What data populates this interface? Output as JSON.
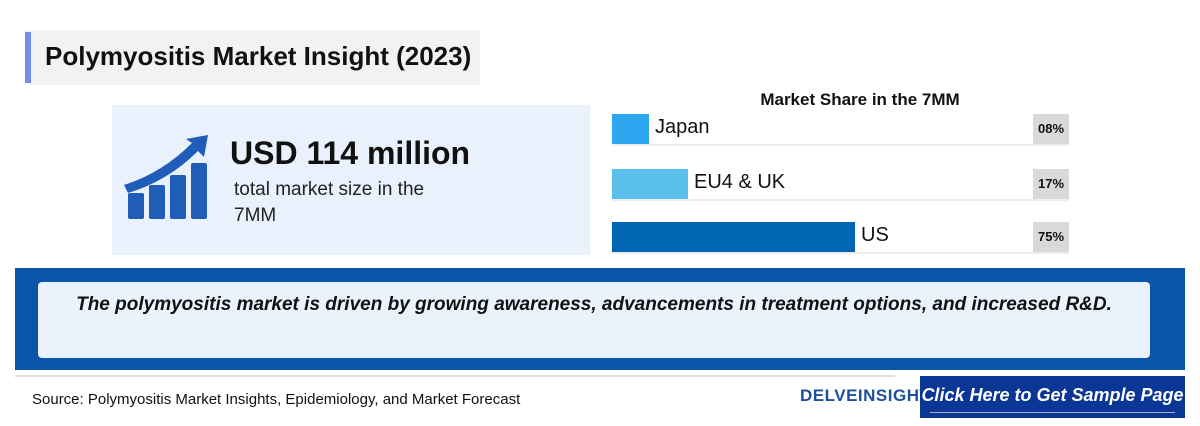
{
  "header": {
    "title": "Polymyositis Market Insight (2023)"
  },
  "kpi": {
    "value": "USD 114 million",
    "subtitle": "total market size in the 7MM",
    "icon": "growth-chart-icon"
  },
  "chart_data": {
    "type": "bar",
    "orientation": "horizontal",
    "title": "Market Share in the 7MM",
    "categories": [
      "Japan",
      "EU4 & UK",
      "US"
    ],
    "values": [
      8,
      17,
      75
    ],
    "value_labels": [
      "08%",
      "17%",
      "75%"
    ],
    "colors": [
      "#2ea7f0",
      "#5bbfec",
      "#0066b3"
    ],
    "unit": "%"
  },
  "banner": {
    "text": "The polymyositis market is driven by growing awareness, advancements in treatment options, and increased R&D."
  },
  "footer": {
    "source": "Source: Polymyositis Market Insights, Epidemiology, and Market Forecast",
    "logo": "DELVEINSIGHT",
    "cta": "Click Here to Get Sample Page"
  }
}
